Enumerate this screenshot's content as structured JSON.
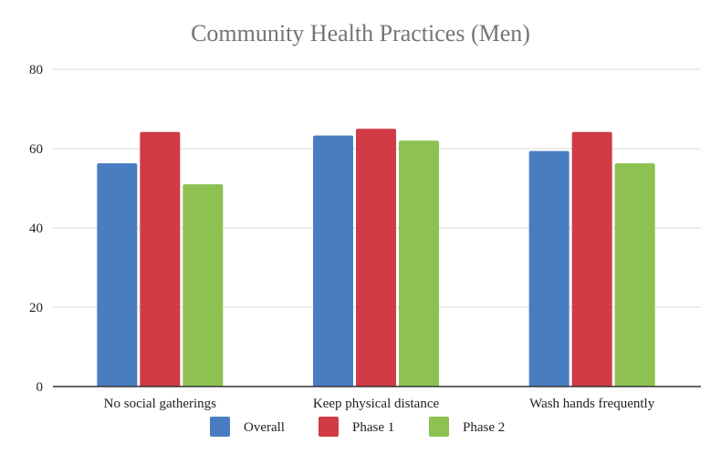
{
  "chart_data": {
    "type": "bar",
    "title": "Community Health Practices (Men)",
    "xlabel": "",
    "ylabel": "",
    "categories": [
      "No social gatherings",
      "Keep physical distance",
      "Wash hands frequently"
    ],
    "series": [
      {
        "name": "Overall",
        "color": "#4a7cc1",
        "values": [
          56.3,
          63.3,
          59.4
        ]
      },
      {
        "name": "Phase 1",
        "color": "#d03b45",
        "values": [
          64.2,
          65.0,
          64.2
        ]
      },
      {
        "name": "Phase 2",
        "color": "#8dc152",
        "values": [
          51.0,
          62.0,
          56.3
        ]
      }
    ],
    "ylim": [
      0,
      80
    ],
    "yticks": [
      0,
      20,
      40,
      60,
      80
    ],
    "grid": true,
    "legend": "bottom"
  }
}
